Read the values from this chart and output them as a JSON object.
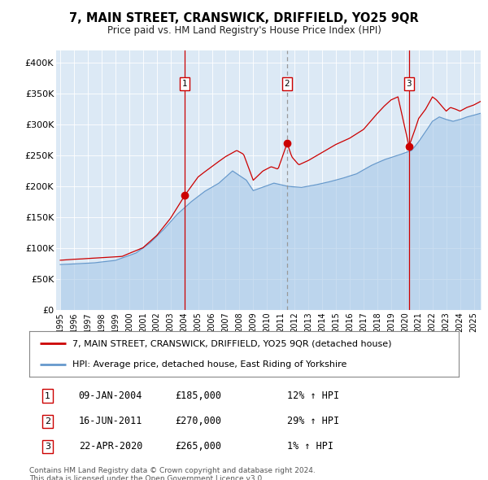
{
  "title": "7, MAIN STREET, CRANSWICK, DRIFFIELD, YO25 9QR",
  "subtitle": "Price paid vs. HM Land Registry's House Price Index (HPI)",
  "legend_property": "7, MAIN STREET, CRANSWICK, DRIFFIELD, YO25 9QR (detached house)",
  "legend_hpi": "HPI: Average price, detached house, East Riding of Yorkshire",
  "footnote1": "Contains HM Land Registry data © Crown copyright and database right 2024.",
  "footnote2": "This data is licensed under the Open Government Licence v3.0.",
  "sale_points": [
    {
      "label": "1",
      "date": "09-JAN-2004",
      "price": 185000,
      "pct": "12%",
      "dir": "↑",
      "x": 2004.03
    },
    {
      "label": "2",
      "date": "16-JUN-2011",
      "price": 270000,
      "pct": "29%",
      "dir": "↑",
      "x": 2011.46
    },
    {
      "label": "3",
      "date": "22-APR-2020",
      "price": 265000,
      "pct": "1%",
      "dir": "↑",
      "x": 2020.3
    }
  ],
  "ylim": [
    0,
    420000
  ],
  "yticks": [
    0,
    50000,
    100000,
    150000,
    200000,
    250000,
    300000,
    350000,
    400000
  ],
  "ytick_labels": [
    "£0",
    "£50K",
    "£100K",
    "£150K",
    "£200K",
    "£250K",
    "£300K",
    "£350K",
    "£400K"
  ],
  "xlim_start": 1994.7,
  "xlim_end": 2025.5,
  "background_color": "#dce9f5",
  "red_line_color": "#cc0000",
  "blue_line_color": "#6699cc",
  "sale_dot_color": "#cc0000",
  "vline_color_solid": "#cc0000",
  "vline_color_dashed": "#999999",
  "grid_color": "#ffffff",
  "fill_color": "#a8c8e8"
}
